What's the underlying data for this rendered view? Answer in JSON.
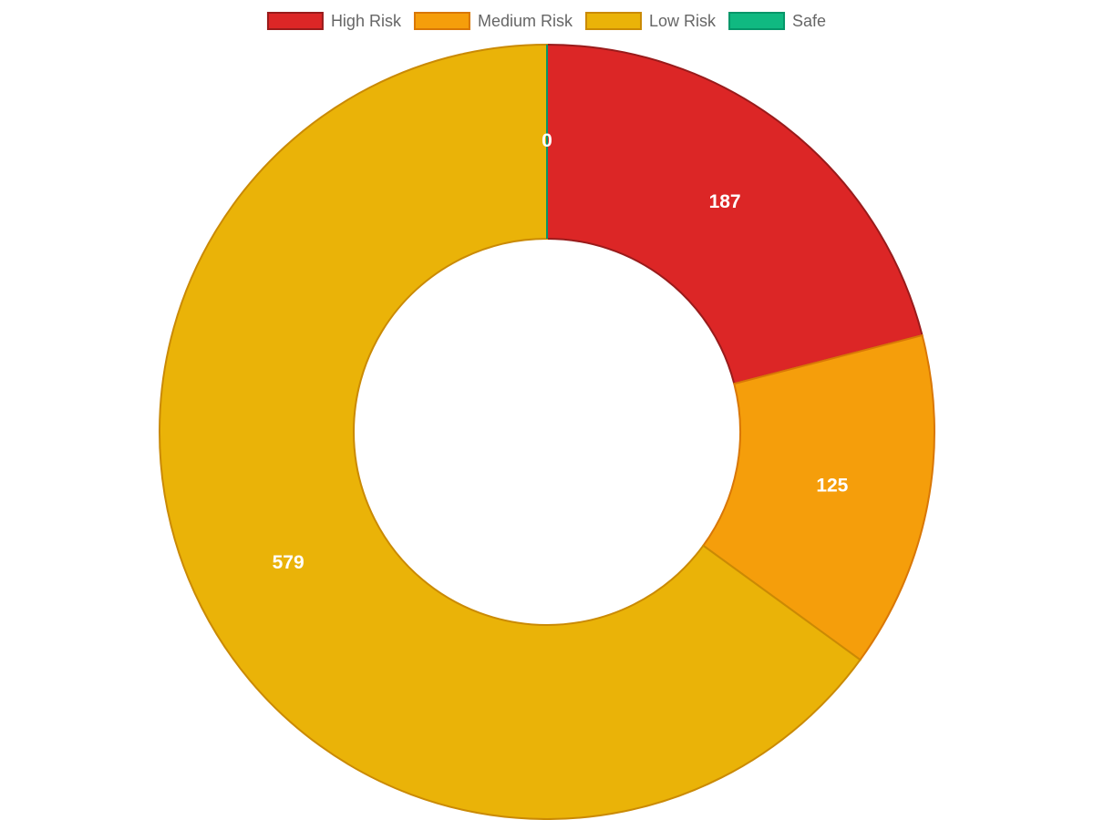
{
  "chart_data": {
    "type": "doughnut",
    "categories": [
      "High Risk",
      "Medium Risk",
      "Low Risk",
      "Safe"
    ],
    "values": [
      187,
      125,
      579,
      0
    ],
    "colors": [
      "#dc2626",
      "#f59e0b",
      "#eab308",
      "#10b981"
    ],
    "border_colors": [
      "#991b1b",
      "#d97706",
      "#ca8a04",
      "#059669"
    ],
    "legend": "top"
  }
}
